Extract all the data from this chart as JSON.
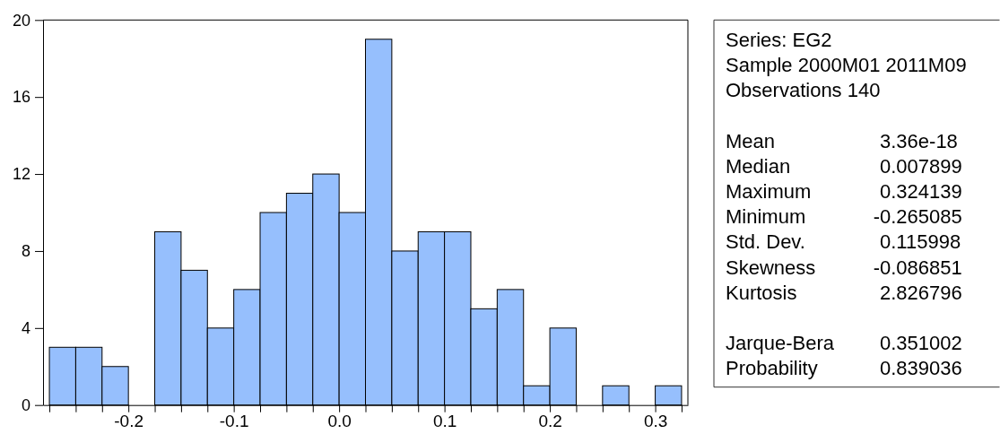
{
  "chart_data": [
    {
      "type": "histogram",
      "bins": [
        -0.275,
        -0.25,
        -0.225,
        -0.2,
        -0.175,
        -0.15,
        -0.125,
        -0.1,
        -0.075,
        -0.05,
        -0.025,
        0,
        0.025,
        0.05,
        0.075,
        0.1,
        0.125,
        0.15,
        0.175,
        0.2,
        0.225,
        0.25,
        0.275,
        0.3,
        0.325
      ],
      "values": [
        3,
        3,
        2,
        0,
        9,
        7,
        4,
        6,
        10,
        11,
        12,
        10,
        19,
        8,
        9,
        9,
        5,
        6,
        1,
        4,
        0,
        1,
        0,
        1
      ],
      "color": "#96bffd",
      "xlim": [
        -0.281,
        0.331
      ],
      "xticks": [
        {
          "value": -0.275,
          "label": null
        },
        {
          "value": -0.25,
          "label": null
        },
        {
          "value": -0.225,
          "label": null
        },
        -0.2,
        {
          "value": -0.175,
          "label": null
        },
        {
          "value": -0.15,
          "label": null
        },
        {
          "value": -0.125,
          "label": null
        },
        -0.1,
        {
          "value": -0.075,
          "label": null
        },
        {
          "value": -0.05,
          "label": null
        },
        {
          "value": -0.025,
          "label": null
        },
        {
          "value": 0,
          "label": "0.0"
        },
        {
          "value": 0.025,
          "label": null
        },
        {
          "value": 0.05,
          "label": null
        },
        {
          "value": 0.075,
          "label": null
        },
        0.1,
        {
          "value": 0.125,
          "label": null
        },
        {
          "value": 0.15,
          "label": null
        },
        {
          "value": 0.175,
          "label": null
        },
        0.2,
        {
          "value": 0.225,
          "label": null
        },
        {
          "value": 0.25,
          "label": null
        },
        {
          "value": 0.275,
          "label": null
        },
        0.3,
        {
          "value": 0.325,
          "label": null
        }
      ],
      "ylim": [
        0,
        20
      ],
      "yticks": [
        0,
        4,
        8,
        12,
        16,
        20
      ],
      "grid": false
    },
    {
      "type": "other",
      "annotations": [
        "Series: EG2",
        "Sample 2000M01 2011M09",
        "Observations 140"
      ],
      "categories": [
        "Mean",
        "Median",
        "Maximum",
        "Minimum",
        "Std. Dev.",
        "Skewness",
        "Kurtosis",
        "Jarque-Bera",
        "Probability"
      ],
      "values": [
        3.36e-18,
        0.007899,
        0.324139,
        -0.265085,
        0.115998,
        -0.086851,
        2.826796,
        0.351002,
        0.839036
      ],
      "data_labels": true
    }
  ]
}
